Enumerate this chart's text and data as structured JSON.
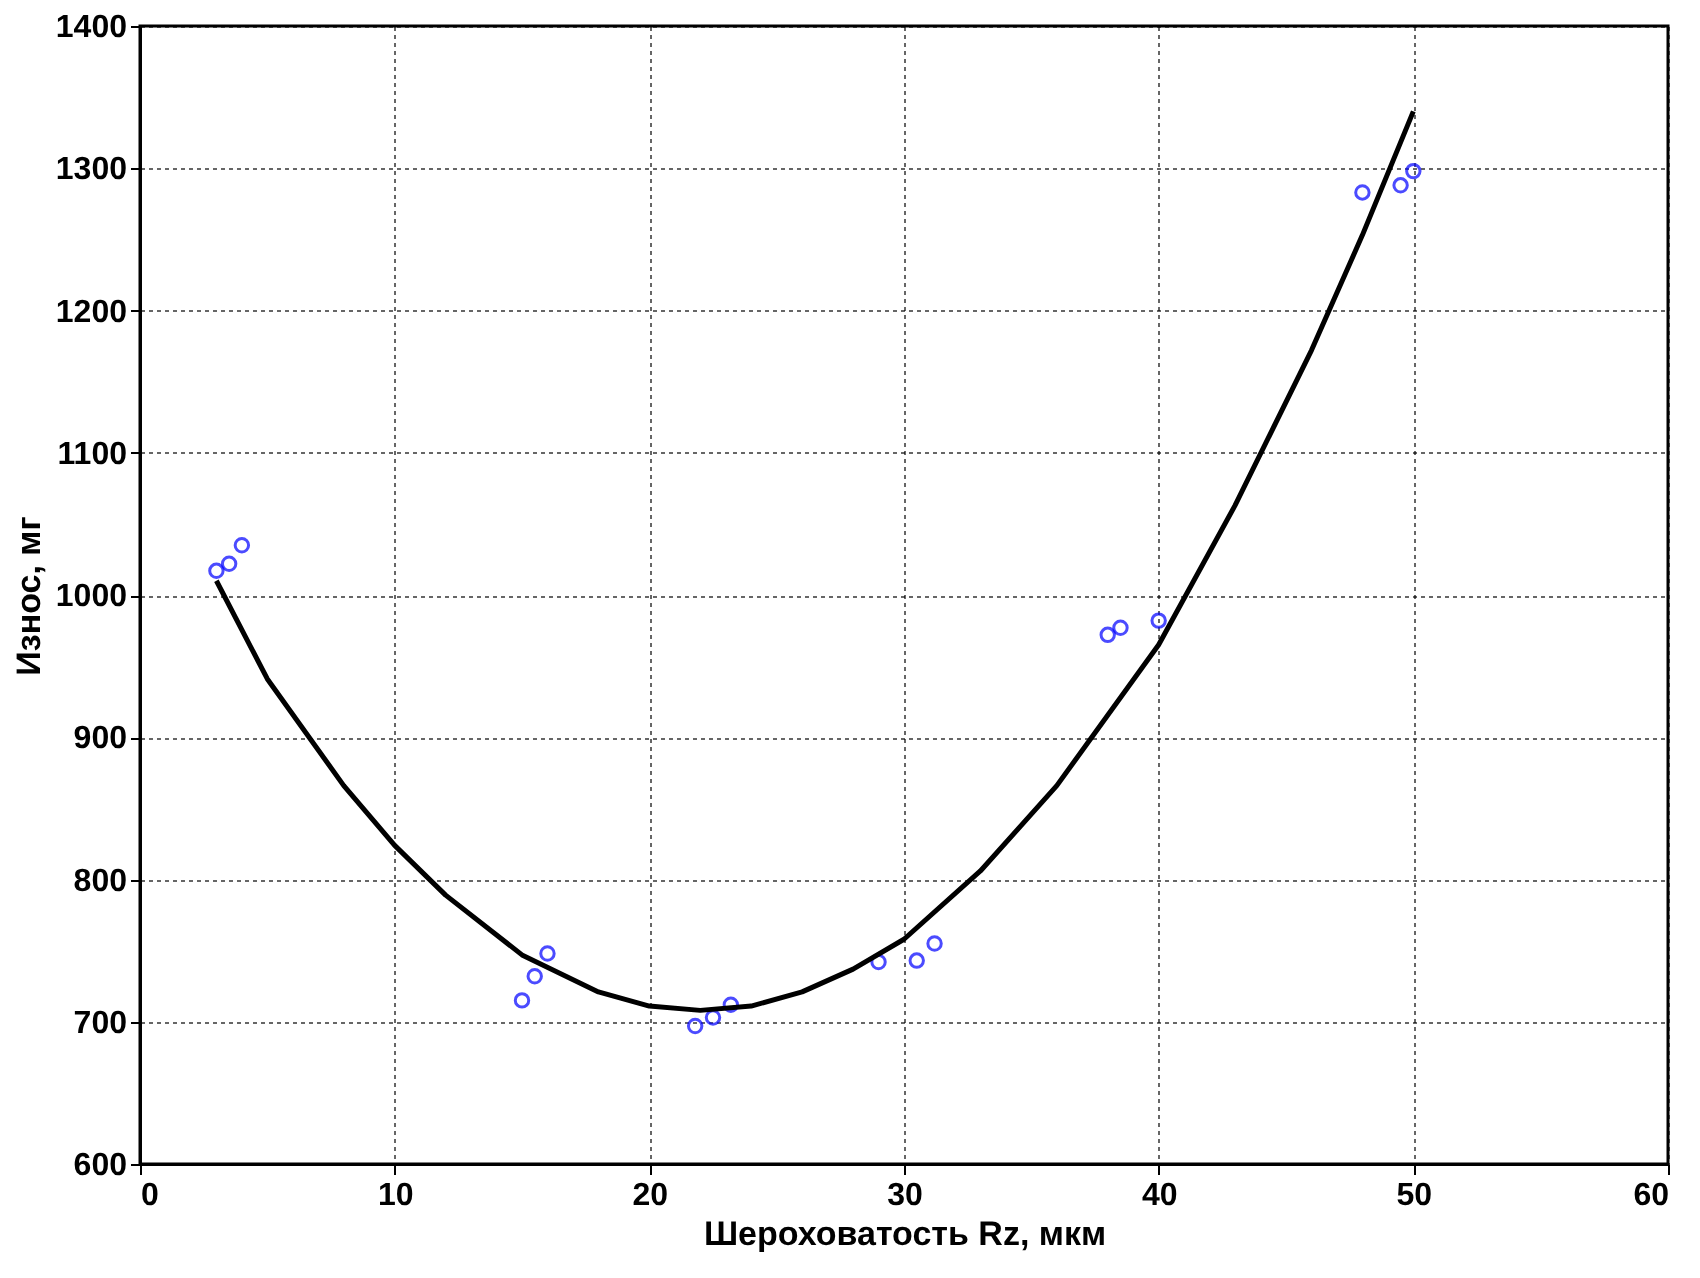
{
  "chart_data": {
    "type": "scatter",
    "xlabel": "Шероховатость Rz, мкм",
    "ylabel": "Износ, мг",
    "xlim": [
      0,
      60
    ],
    "xticks": [
      0,
      10,
      20,
      30,
      40,
      50,
      60
    ],
    "ylim": [
      600,
      1400
    ],
    "yticks": [
      600,
      700,
      800,
      900,
      1000,
      1100,
      1200,
      1300,
      1400
    ],
    "grid": true,
    "series": [
      {
        "color": "#0000ff",
        "marker": "circle",
        "x": [
          3,
          3.5,
          4,
          15,
          15.5,
          16,
          21.8,
          22.5,
          23.2,
          29,
          30.5,
          31.2,
          38,
          38.5,
          40,
          48,
          49.5,
          50
        ],
        "values": [
          1017,
          1022,
          1035,
          715,
          732,
          748,
          697,
          703,
          712,
          742,
          743,
          755,
          972,
          977,
          982,
          1283,
          1288,
          1298
        ]
      },
      {
        "type": "line",
        "color": "#000000",
        "marker": "none",
        "line_style": "solid",
        "x": [
          3,
          5,
          8,
          10,
          12,
          15,
          18,
          20,
          22,
          24,
          26,
          28,
          30,
          33,
          36,
          40,
          43,
          46,
          48,
          50
        ],
        "values": [
          1010,
          941,
          866,
          824,
          789,
          747,
          721,
          711,
          708,
          711,
          721,
          737,
          758,
          806,
          866,
          965,
          1063,
          1172,
          1253,
          1340
        ]
      }
    ]
  }
}
